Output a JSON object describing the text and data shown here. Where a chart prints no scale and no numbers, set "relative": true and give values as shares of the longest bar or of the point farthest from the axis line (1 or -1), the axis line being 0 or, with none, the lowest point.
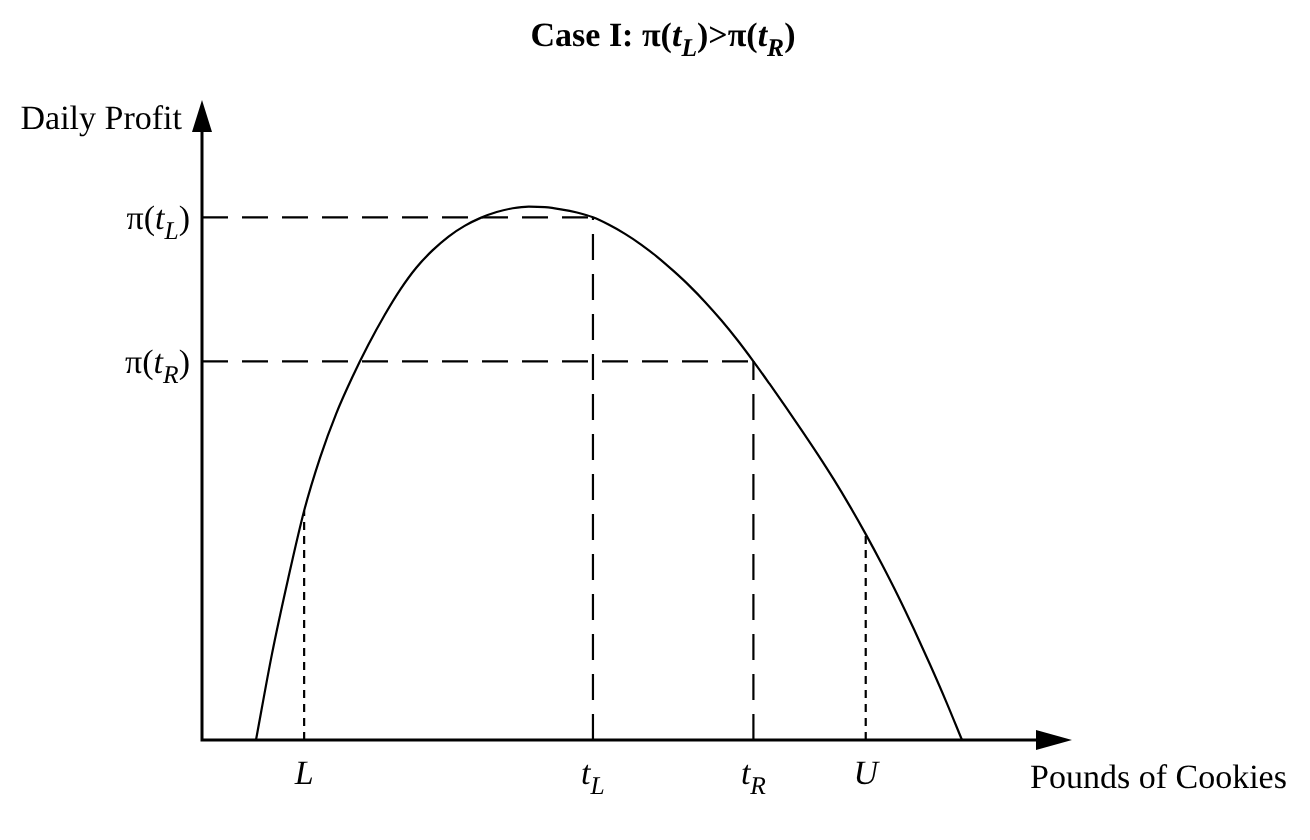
{
  "chart_data": {
    "type": "line",
    "title": "Case I: π(t$_{L}$)>π(t$_{R}$)",
    "xlabel": "Pounds of Cookies",
    "ylabel": "Daily Profit",
    "relative": true,
    "categories": [
      null,
      null,
      null,
      "L",
      null,
      null,
      null,
      null,
      null,
      null,
      null,
      null,
      null,
      null,
      null,
      null,
      null,
      null,
      null,
      null,
      null,
      "t$_{L}$",
      null,
      null,
      null,
      null,
      null,
      null,
      null,
      null,
      null,
      "t$_{R}$",
      null,
      null,
      null,
      null,
      null,
      null,
      "U",
      null,
      null,
      null,
      null,
      null,
      null
    ],
    "values": [
      0,
      0.162,
      0.302,
      0.43,
      0.53,
      0.612,
      0.68,
      0.741,
      0.796,
      0.845,
      0.886,
      0.918,
      0.944,
      0.964,
      0.979,
      0.99,
      0.997,
      1,
      0.999,
      0.995,
      0.989,
      0.98,
      0.966,
      0.949,
      0.929,
      0.906,
      0.88,
      0.852,
      0.821,
      0.787,
      0.75,
      0.71,
      0.668,
      0.625,
      0.581,
      0.536,
      0.489,
      0.439,
      0.386,
      0.33,
      0.271,
      0.208,
      0.142,
      0.073,
      0
    ],
    "color": "#000000",
    "marker": "none",
    "line_style": "solid",
    "ref_lines": [
      {
        "axis": "y",
        "value": 0.98,
        "label": "π(t$_{L}$)",
        "line_style": "dashed"
      },
      {
        "axis": "y",
        "value": 0.71,
        "label": "π(t$_{R}$)",
        "line_style": "dashed"
      },
      {
        "axis": "x",
        "value": "L",
        "line_style": "dotted"
      },
      {
        "axis": "x",
        "value": "t$_{L}$",
        "line_style": "dashed"
      },
      {
        "axis": "x",
        "value": "t$_{R}$",
        "line_style": "dashed"
      },
      {
        "axis": "x",
        "value": "U",
        "line_style": "dotted"
      }
    ]
  }
}
